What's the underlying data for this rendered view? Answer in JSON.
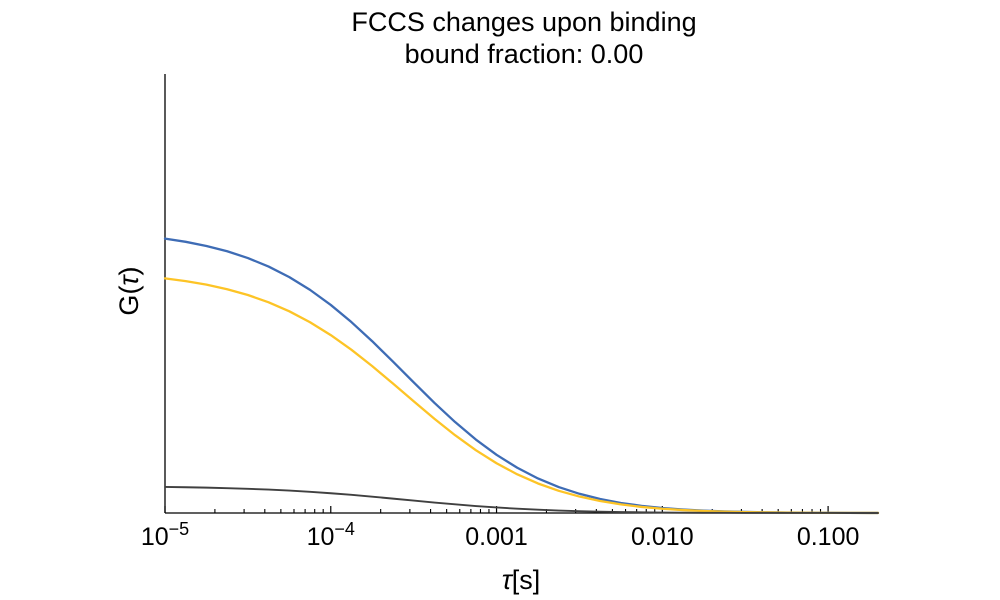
{
  "title": {
    "line1": "FCCS changes upon binding",
    "line2": "bound fraction: 0.00"
  },
  "axes": {
    "y_label_pre": "G(",
    "y_label_tau": "τ",
    "y_label_post": ")",
    "x_label_tau": "τ",
    "x_label_unit": "[s]"
  },
  "chart_data": {
    "type": "line",
    "title": "FCCS changes upon binding",
    "subtitle": "bound fraction: 0.00",
    "xlabel": "τ[s]",
    "ylabel": "G(τ)",
    "xscale": "log",
    "xlim": [
      1e-05,
      0.2
    ],
    "ylim": [
      0,
      1.6
    ],
    "grid": false,
    "legend": "none",
    "axis_color": "#000000",
    "x_major_ticks": [
      {
        "value": 1e-05,
        "base": "10",
        "exp": "−5"
      },
      {
        "value": 0.0001,
        "base": "10",
        "exp": "−4"
      },
      {
        "value": 0.001,
        "text": "0.001"
      },
      {
        "value": 0.01,
        "text": "0.010"
      },
      {
        "value": 0.1,
        "text": "0.100"
      }
    ],
    "x": [
      1e-05,
      1.3335e-05,
      1.7783e-05,
      2.3714e-05,
      3.1623e-05,
      4.217e-05,
      5.6234e-05,
      7.4989e-05,
      0.0001,
      0.00013335,
      0.00017783,
      0.00023714,
      0.00031623,
      0.0004217,
      0.00056234,
      0.00074989,
      0.001,
      0.0013335,
      0.0017783,
      0.0023714,
      0.0031623,
      0.004217,
      0.0056234,
      0.0074989,
      0.01,
      0.013335,
      0.017783,
      0.023714,
      0.031623,
      0.04217,
      0.056234,
      0.074989,
      0.1,
      0.13335,
      0.17783,
      0.2
    ],
    "series": [
      {
        "id": "series-1",
        "color": "#3e6cb5",
        "stroke_width": 2.3,
        "amplitude": 1.0,
        "values": [
          1.0,
          0.9884,
          0.9733,
          0.9539,
          0.9292,
          0.8981,
          0.8597,
          0.8132,
          0.7583,
          0.6955,
          0.626,
          0.5518,
          0.4761,
          0.4016,
          0.3315,
          0.2678,
          0.2121,
          0.1648,
          0.1259,
          0.0946,
          0.07,
          0.051,
          0.0366,
          0.0259,
          0.0181,
          0.0125,
          0.0085,
          0.0058,
          0.0039,
          0.0026,
          0.0017,
          0.0011,
          0.0007,
          0.0005,
          0.0003,
          0.0003
        ]
      },
      {
        "id": "series-2",
        "color": "#fdc426",
        "stroke_width": 2.3,
        "amplitude": 0.855,
        "values": [
          0.855,
          0.8451,
          0.8322,
          0.8156,
          0.7945,
          0.7679,
          0.735,
          0.6953,
          0.6484,
          0.5947,
          0.5352,
          0.4718,
          0.4071,
          0.3434,
          0.2834,
          0.229,
          0.1813,
          0.1409,
          0.1076,
          0.0809,
          0.0599,
          0.0436,
          0.0313,
          0.0221,
          0.0155,
          0.0107,
          0.0073,
          0.005,
          0.0033,
          0.0022,
          0.0015,
          0.0009,
          0.0006,
          0.0004,
          0.0003,
          0.0002
        ]
      },
      {
        "id": "series-3",
        "color": "#404040",
        "stroke_width": 1.9,
        "amplitude": 0.095,
        "values": [
          0.095,
          0.0939,
          0.0925,
          0.0906,
          0.0883,
          0.0853,
          0.0817,
          0.0773,
          0.072,
          0.0661,
          0.0595,
          0.0524,
          0.0452,
          0.0382,
          0.0315,
          0.0254,
          0.0202,
          0.0157,
          0.012,
          0.009,
          0.0067,
          0.0048,
          0.0035,
          0.0025,
          0.0017,
          0.0012,
          0.0008,
          0.0006,
          0.0004,
          0.0002,
          0.0002,
          0.0001,
          0.0001,
          0.0,
          0.0,
          0.0
        ]
      }
    ]
  }
}
